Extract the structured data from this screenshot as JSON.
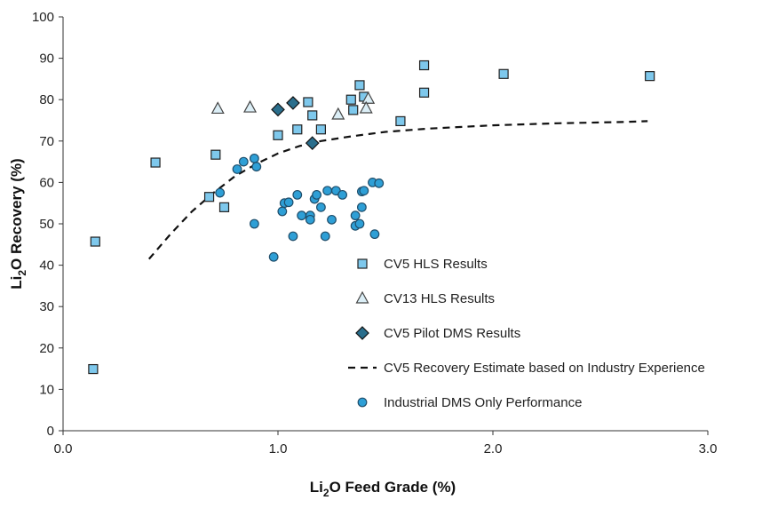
{
  "chart_data": {
    "type": "scatter",
    "title": "",
    "xlabel": {
      "pre": "Li",
      "sub": "2",
      "post": "O Feed Grade (%)"
    },
    "ylabel": {
      "pre": "Li",
      "sub": "2",
      "post": "O Recovery (%)"
    },
    "xlim": [
      0,
      3.0
    ],
    "ylim": [
      0,
      100
    ],
    "xticks": [
      0,
      1,
      2,
      3
    ],
    "xtick_labels": [
      "0.0",
      "1.0",
      "2.0",
      "3.0"
    ],
    "yticks": [
      0,
      10,
      20,
      30,
      40,
      50,
      60,
      70,
      80,
      90,
      100
    ],
    "ytick_labels": [
      "0",
      "10",
      "20",
      "30",
      "40",
      "50",
      "60",
      "70",
      "80",
      "90",
      "100"
    ],
    "grid": false,
    "legend_position": "lower-right",
    "series": [
      {
        "name": "CV5 HLS Results",
        "marker": "square",
        "fill": "#7ec8ec",
        "stroke": "#222222",
        "points": [
          [
            0.15,
            45.7
          ],
          [
            0.14,
            14.9
          ],
          [
            0.43,
            64.8
          ],
          [
            0.71,
            66.7
          ],
          [
            0.68,
            56.5
          ],
          [
            0.75,
            54.0
          ],
          [
            1.0,
            71.4
          ],
          [
            1.09,
            72.8
          ],
          [
            1.14,
            79.4
          ],
          [
            1.16,
            76.2
          ],
          [
            1.2,
            72.8
          ],
          [
            1.34,
            80.0
          ],
          [
            1.35,
            77.5
          ],
          [
            1.38,
            83.5
          ],
          [
            1.4,
            80.7
          ],
          [
            1.57,
            74.8
          ],
          [
            1.68,
            88.3
          ],
          [
            1.68,
            81.7
          ],
          [
            2.05,
            86.2
          ],
          [
            2.73,
            85.7
          ]
        ]
      },
      {
        "name": "CV13 HLS Results",
        "marker": "triangle",
        "fill": "#dbeef6",
        "stroke": "#444444",
        "points": [
          [
            0.72,
            77.8
          ],
          [
            0.87,
            78.1
          ],
          [
            1.28,
            76.4
          ],
          [
            1.42,
            80.2
          ],
          [
            1.41,
            77.9
          ]
        ]
      },
      {
        "name": "CV5 Pilot DMS Results",
        "marker": "diamond",
        "fill": "#2a6e8c",
        "stroke": "#111111",
        "points": [
          [
            1.0,
            77.6
          ],
          [
            1.07,
            79.2
          ],
          [
            1.16,
            69.5
          ]
        ]
      },
      {
        "name": "CV5 Recovery Estimate based on Industry Experience",
        "marker": "dashed-line",
        "stroke": "#111111",
        "points": [
          [
            0.4,
            41.5
          ],
          [
            0.5,
            47.5
          ],
          [
            0.6,
            53.0
          ],
          [
            0.7,
            57.5
          ],
          [
            0.8,
            61.5
          ],
          [
            0.9,
            64.5
          ],
          [
            1.0,
            67.0
          ],
          [
            1.1,
            68.8
          ],
          [
            1.2,
            70.0
          ],
          [
            1.35,
            71.2
          ],
          [
            1.5,
            72.2
          ],
          [
            1.7,
            73.0
          ],
          [
            2.0,
            73.8
          ],
          [
            2.3,
            74.3
          ],
          [
            2.6,
            74.6
          ],
          [
            2.72,
            74.8
          ]
        ]
      },
      {
        "name": "Industrial DMS Only Performance",
        "marker": "circle",
        "fill": "#2e9fd6",
        "stroke": "#1f4e6b",
        "points": [
          [
            0.73,
            57.5
          ],
          [
            0.81,
            63.2
          ],
          [
            0.84,
            65.0
          ],
          [
            0.89,
            65.8
          ],
          [
            0.9,
            63.8
          ],
          [
            0.89,
            50.0
          ],
          [
            0.98,
            42.0
          ],
          [
            1.02,
            53.0
          ],
          [
            1.03,
            55.0
          ],
          [
            1.05,
            55.2
          ],
          [
            1.07,
            47.0
          ],
          [
            1.09,
            57.0
          ],
          [
            1.11,
            52.0
          ],
          [
            1.15,
            52.0
          ],
          [
            1.15,
            51.0
          ],
          [
            1.17,
            56.0
          ],
          [
            1.18,
            57.0
          ],
          [
            1.2,
            54.0
          ],
          [
            1.22,
            47.0
          ],
          [
            1.23,
            58.0
          ],
          [
            1.25,
            51.0
          ],
          [
            1.27,
            58.0
          ],
          [
            1.3,
            57.0
          ],
          [
            1.36,
            52.0
          ],
          [
            1.36,
            49.5
          ],
          [
            1.38,
            50.0
          ],
          [
            1.39,
            54.0
          ],
          [
            1.39,
            57.8
          ],
          [
            1.4,
            58.0
          ],
          [
            1.44,
            60.0
          ],
          [
            1.45,
            47.5
          ],
          [
            1.47,
            59.8
          ]
        ]
      }
    ]
  }
}
